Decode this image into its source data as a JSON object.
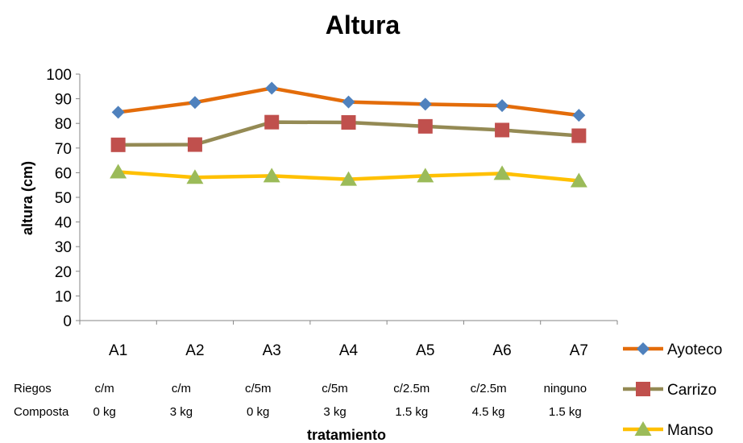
{
  "chart_data": {
    "type": "line",
    "title": "Altura",
    "xlabel": "tratamiento",
    "ylabel": "altura (cm)",
    "ylim": [
      0,
      100
    ],
    "yticks": [
      0,
      10,
      20,
      30,
      40,
      50,
      60,
      70,
      80,
      90,
      100
    ],
    "categories": [
      "A1",
      "A2",
      "A3",
      "A4",
      "A5",
      "A6",
      "A7"
    ],
    "grid": false,
    "legend_position": "right",
    "series": [
      {
        "name": "Ayoteco",
        "color": "#E36C0A",
        "marker": "diamond",
        "marker_color": "#4F81BD",
        "values": [
          84.5,
          88.5,
          94.3,
          88.7,
          87.8,
          87.2,
          83.3
        ]
      },
      {
        "name": "Carrizo",
        "color": "#948A54",
        "marker": "square",
        "marker_color": "#C0504D",
        "values": [
          71.3,
          71.4,
          80.5,
          80.4,
          78.8,
          77.3,
          75.0
        ]
      },
      {
        "name": "Manso",
        "color": "#FFC000",
        "marker": "triangle",
        "marker_color": "#9BBB59",
        "values": [
          60.3,
          58.1,
          58.7,
          57.3,
          58.7,
          59.7,
          56.7
        ]
      }
    ],
    "table": {
      "rows": [
        {
          "label": "Riegos",
          "values": [
            "c/m",
            "c/m",
            "c/5m",
            "c/5m",
            "c/2.5m",
            "c/2.5m",
            "ninguno"
          ]
        },
        {
          "label": "Composta",
          "values": [
            "0 kg",
            "3 kg",
            "0 kg",
            "3 kg",
            "1.5 kg",
            "4.5 kg",
            "1.5 kg"
          ]
        }
      ]
    }
  }
}
